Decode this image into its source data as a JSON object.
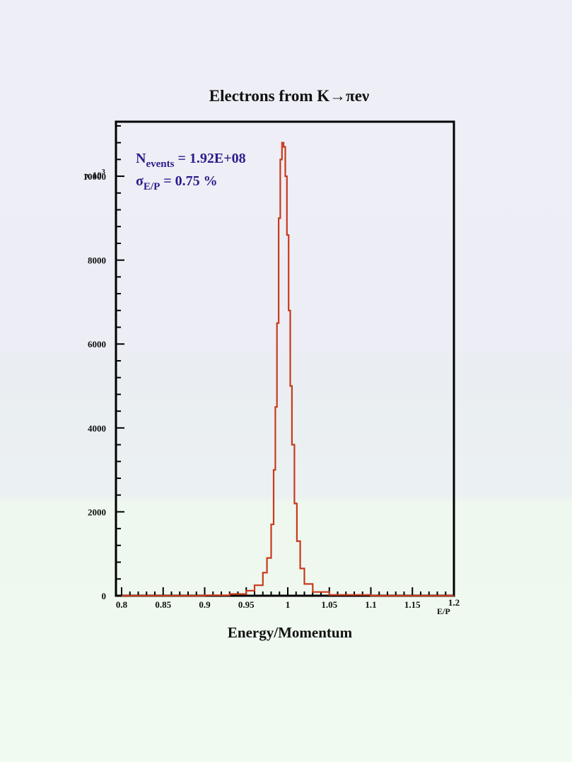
{
  "chart_data": {
    "type": "line",
    "title": "Electrons from K→πeν",
    "xlabel": "Energy/Momentum",
    "x_unit_label": "E/P",
    "y_multiplier_label": "x 10",
    "y_multiplier_exp": "3",
    "xlim": [
      0.8,
      1.2
    ],
    "ylim": [
      0,
      11300
    ],
    "x_ticks": [
      "0.8",
      "0.85",
      "0.9",
      "0.95",
      "1",
      "1.05",
      "1.1",
      "1.15",
      "1.2"
    ],
    "y_ticks": [
      "0",
      "2000",
      "4000",
      "6000",
      "8000",
      "10000"
    ],
    "stats": {
      "n_label": "N",
      "n_sub": "events",
      "n_value": " = 1.92E+08",
      "sigma_label": "σ",
      "sigma_sub": "E/P",
      "sigma_value": " = 0.75 %"
    },
    "line_color": "#c83a1c",
    "series": [
      {
        "x": [
          0.8,
          0.85,
          0.9,
          0.93,
          0.95,
          0.96,
          0.97,
          0.975,
          0.98,
          0.983,
          0.985,
          0.987,
          0.989,
          0.991,
          0.993,
          0.995,
          0.997,
          0.999,
          1.001,
          1.003,
          1.005,
          1.008,
          1.011,
          1.015,
          1.02,
          1.03,
          1.05,
          1.1,
          1.2
        ],
        "y": [
          0,
          0,
          10,
          40,
          120,
          250,
          550,
          900,
          1700,
          3000,
          4500,
          6500,
          9000,
          10400,
          10800,
          10700,
          10000,
          8600,
          6800,
          5000,
          3600,
          2200,
          1300,
          650,
          280,
          90,
          20,
          0,
          0
        ]
      }
    ]
  }
}
